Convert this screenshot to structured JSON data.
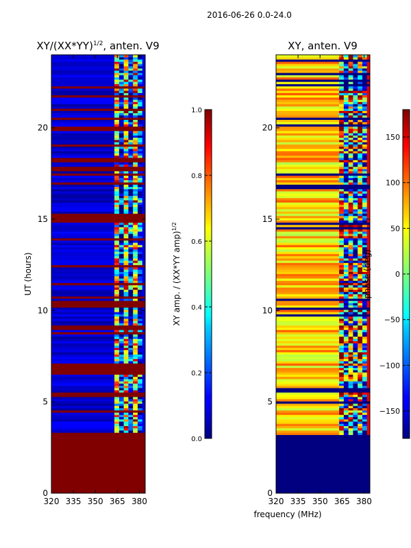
{
  "figure_title": "2016-06-26 0.0-24.0",
  "chart_data": [
    {
      "type": "heatmap",
      "title": "XY/(XX*YY)",
      "title_superscript": "1/2",
      "title_suffix": ", anten. V9",
      "xlabel": "",
      "ylabel": "UT (hours)",
      "xlim": [
        320,
        384
      ],
      "ylim": [
        0,
        24
      ],
      "xticks": [
        320,
        335,
        350,
        365,
        380
      ],
      "yticks": [
        0,
        5,
        10,
        15,
        20
      ],
      "colorbar": {
        "label": "XY amp. / (XX*YY amp)",
        "label_superscript": "1/2",
        "range": [
          0.0,
          1.0
        ],
        "ticks": [
          "0.0",
          "0.2",
          "0.4",
          "0.6",
          "0.8",
          "1.0"
        ],
        "colormap": "jet"
      },
      "regions": [
        {
          "from_hour": 0,
          "to_hour": 3.2,
          "value": 1.0,
          "description": "flagged (saturated)"
        },
        {
          "from_hour": 3.2,
          "to_hour": 24,
          "value": 0.08,
          "description": "low amplitude"
        }
      ],
      "high_band_mhz": [
        363,
        382
      ]
    },
    {
      "type": "heatmap",
      "title": "XY, anten. V9",
      "xlabel": "frequency (MHz)",
      "ylabel": "",
      "xlim": [
        320,
        384
      ],
      "ylim": [
        0,
        24
      ],
      "xticks": [
        320,
        335,
        350,
        365,
        380
      ],
      "yticks": [
        0,
        5,
        10,
        15,
        20
      ],
      "colorbar": {
        "label": "phase (deg)",
        "range": [
          -180,
          180
        ],
        "ticks": [
          "150",
          "100",
          "50",
          "0",
          "−50",
          "−100",
          "−150"
        ],
        "colormap": "jet"
      },
      "regions": [
        {
          "from_hour": 0,
          "to_hour": 3.2,
          "value": -180,
          "description": "flagged"
        },
        {
          "from_hour": 3.2,
          "to_hour": 24,
          "value": 60,
          "description": "phase ~ 50-80 deg"
        }
      ],
      "high_band_mhz": [
        363,
        382
      ]
    }
  ],
  "colors": {
    "jet_dark_red": "#7f0000",
    "jet_dark_blue": "#00007f",
    "jet_blue": "#0000ff",
    "jet_yellow": "#ffff00"
  }
}
